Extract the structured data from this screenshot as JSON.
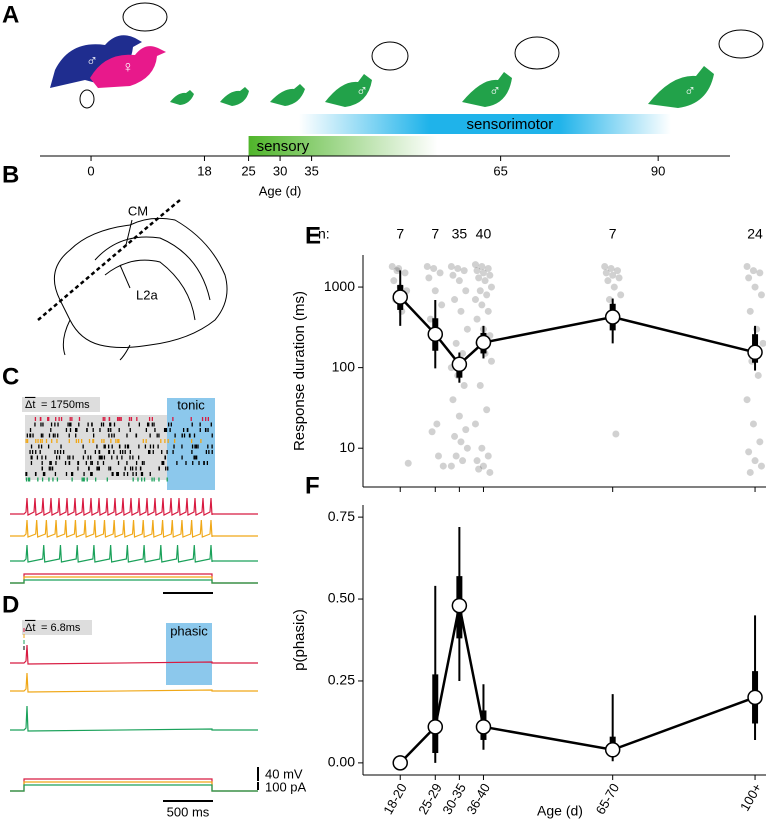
{
  "panel_a": {
    "label": "A",
    "xlim": [
      -8.1,
      101.4
    ],
    "xticks": [
      0,
      18,
      25,
      30,
      35,
      65,
      90
    ],
    "xlabel": "Age (d)",
    "periods": [
      {
        "name": "sensory",
        "start": 25,
        "end": 55,
        "color": "#4fb52a"
      },
      {
        "name": "sensorimotor",
        "start": 33,
        "end": 92,
        "color": "#1fb3ea"
      }
    ],
    "symbols": [
      "♂",
      "♀",
      "♂",
      "♂",
      "♂"
    ]
  },
  "panel_b": {
    "label": "B",
    "labels": [
      "CM",
      "L2a"
    ]
  },
  "panel_c": {
    "label": "C",
    "dt_symbol": "Δt",
    "dt_value": "= 1750ms",
    "window": "tonic"
  },
  "panel_d": {
    "label": "D",
    "dt_symbol": "Δt",
    "dt_value": "= 6.8ms",
    "window": "phasic",
    "scale_v": "40 mV",
    "scale_i": "100 pA",
    "scale_t": "500 ms"
  },
  "chart_data": [
    {
      "type": "line",
      "panel_label": "E",
      "ylabel": "Response duration (ms)",
      "yscale": "log",
      "ylim": [
        3.3,
        2500
      ],
      "yticks": [
        10,
        100,
        1000
      ],
      "xlim": [
        10.5,
        102.5
      ],
      "xticks": [
        19,
        27,
        32.5,
        38,
        67.5,
        100
      ],
      "x": [
        19,
        27,
        32.5,
        38,
        67.5,
        100
      ],
      "values": [
        750,
        260,
        110,
        205,
        425,
        155
      ],
      "ci": [
        [
          330,
          1610
        ],
        [
          98,
          690
        ],
        [
          65,
          154
        ],
        [
          130,
          330
        ],
        [
          200,
          720
        ],
        [
          92,
          330
        ]
      ],
      "iqr": [
        [
          520,
          1060
        ],
        [
          162,
          410
        ],
        [
          75,
          130
        ],
        [
          150,
          270
        ],
        [
          290,
          620
        ],
        [
          115,
          260
        ]
      ],
      "points": [
        [
          1800,
          1700,
          1500,
          1200,
          1000,
          900,
          700,
          500,
          6.5,
          1600
        ],
        [
          1800,
          1700,
          1500,
          1300,
          900,
          600,
          400,
          20,
          6,
          16,
          8
        ],
        [
          1800,
          1700,
          1600,
          1400,
          1200,
          900,
          700,
          500,
          300,
          200,
          150,
          100,
          80,
          60,
          40,
          25,
          17,
          14,
          12,
          10,
          8,
          7,
          6
        ],
        [
          1900,
          1800,
          1700,
          1600,
          1500,
          1400,
          1300,
          1200,
          1000,
          900,
          800,
          700,
          600,
          500,
          400,
          300,
          250,
          200,
          150,
          120,
          60,
          30,
          20,
          10,
          8,
          7,
          6,
          5,
          5.5
        ],
        [
          1800,
          1700,
          1600,
          1500,
          1400,
          1300,
          1200,
          1000,
          800,
          700,
          15
        ],
        [
          1800,
          1600,
          1500,
          1300,
          1000,
          800,
          500,
          300,
          200,
          120,
          80,
          40,
          20,
          12,
          9,
          7,
          6,
          5
        ]
      ],
      "n_label": "n:",
      "n": [
        7,
        7,
        35,
        40,
        7,
        24
      ]
    },
    {
      "type": "line",
      "panel_label": "F",
      "ylabel": "p(phasic)",
      "xlabel": "Age (d)",
      "ylim": [
        -0.037,
        0.787
      ],
      "yticks": [
        {
          "value": 0,
          "label": "0.00"
        },
        {
          "value": 0.25,
          "label": "0.25"
        },
        {
          "value": 0.5,
          "label": "0.50"
        },
        {
          "value": 0.75,
          "label": "0.75"
        }
      ],
      "xlim": [
        10.5,
        102.5
      ],
      "xticks": [
        {
          "value": 19,
          "label": "18-20"
        },
        {
          "value": 27,
          "label": "25-29"
        },
        {
          "value": 32.5,
          "label": "30-35"
        },
        {
          "value": 38,
          "label": "36-40"
        },
        {
          "value": 67.5,
          "label": "65-70"
        },
        {
          "value": 100,
          "label": "100+"
        }
      ],
      "x": [
        19,
        27,
        32.5,
        38,
        67.5,
        100
      ],
      "values": [
        0.0,
        0.11,
        0.48,
        0.11,
        0.04,
        0.2
      ],
      "ci": [
        [
          0,
          0.02
        ],
        [
          0,
          0.54
        ],
        [
          0.25,
          0.72
        ],
        [
          0.04,
          0.24
        ],
        [
          0.005,
          0.21
        ],
        [
          0.07,
          0.45
        ]
      ],
      "iqr": [
        [
          0,
          0.01
        ],
        [
          0.03,
          0.27
        ],
        [
          0.38,
          0.57
        ],
        [
          0.07,
          0.16
        ],
        [
          0.02,
          0.08
        ],
        [
          0.12,
          0.28
        ]
      ]
    }
  ]
}
